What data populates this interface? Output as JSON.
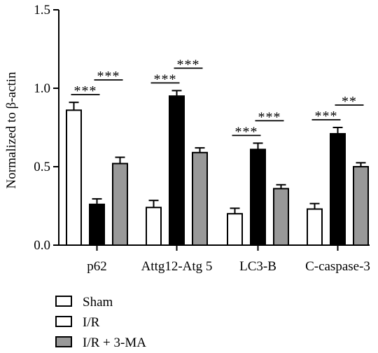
{
  "chart_data": {
    "type": "bar",
    "ylabel": "Normalized to β-actin",
    "ylim": [
      0,
      1.5
    ],
    "yticks": [
      "0.0",
      "0.5",
      "1.0",
      "1.5"
    ],
    "categories": [
      "p62",
      "Attg12-Atg 5",
      "LC3-B",
      "C-caspase-3"
    ],
    "series": [
      {
        "name": "Sham",
        "color": "#ffffff",
        "values": [
          0.86,
          0.24,
          0.2,
          0.23
        ],
        "errors": [
          0.05,
          0.045,
          0.035,
          0.035
        ]
      },
      {
        "name": "I/R",
        "color": "#000000",
        "values": [
          0.26,
          0.95,
          0.61,
          0.71
        ],
        "errors": [
          0.035,
          0.035,
          0.04,
          0.04
        ]
      },
      {
        "name": "I/R + 3-MA",
        "color": "#999999",
        "values": [
          0.52,
          0.59,
          0.36,
          0.5
        ],
        "errors": [
          0.04,
          0.03,
          0.025,
          0.025
        ]
      }
    ],
    "significance": [
      {
        "category": 0,
        "pairs": [
          {
            "from": 0,
            "to": 1,
            "label": "***"
          },
          {
            "from": 1,
            "to": 2,
            "label": "***"
          }
        ]
      },
      {
        "category": 1,
        "pairs": [
          {
            "from": 0,
            "to": 1,
            "label": "***"
          },
          {
            "from": 1,
            "to": 2,
            "label": "***"
          }
        ]
      },
      {
        "category": 2,
        "pairs": [
          {
            "from": 0,
            "to": 1,
            "label": "***"
          },
          {
            "from": 1,
            "to": 2,
            "label": "***"
          }
        ]
      },
      {
        "category": 3,
        "pairs": [
          {
            "from": 0,
            "to": 1,
            "label": "***"
          },
          {
            "from": 1,
            "to": 2,
            "label": "**"
          }
        ]
      }
    ],
    "legend_position": "bottom-left"
  }
}
